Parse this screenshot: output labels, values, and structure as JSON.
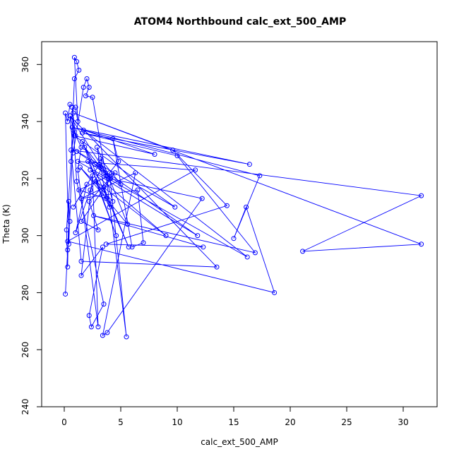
{
  "chart_data": {
    "type": "line",
    "title": "ATOM4 Northbound calc_ext_500_AMP",
    "xlabel": "calc_ext_500_AMP",
    "ylabel": "Theta (K)",
    "xlim": [
      -2,
      33
    ],
    "ylim": [
      240,
      368
    ],
    "xticks": [
      0,
      5,
      10,
      15,
      20,
      25,
      30
    ],
    "yticks": [
      240,
      260,
      280,
      300,
      320,
      340,
      360
    ],
    "grid": false,
    "legend": "none",
    "line_color": "#0000ff",
    "marker": "open-circle",
    "series": [
      {
        "points": [
          [
            0.1,
            279.5
          ],
          [
            0.3,
            295
          ],
          [
            0.5,
            305
          ],
          [
            0.4,
            312
          ],
          [
            0.3,
            289
          ],
          [
            0.2,
            302
          ],
          [
            0.6,
            326
          ],
          [
            0.9,
            355
          ],
          [
            1.3,
            358
          ],
          [
            1.1,
            361
          ],
          [
            0.9,
            362.5
          ],
          [
            1.2,
            340
          ],
          [
            1.0,
            345
          ],
          [
            0.5,
            346
          ],
          [
            0.3,
            340
          ],
          [
            0.1,
            343
          ],
          [
            0.4,
            297
          ],
          [
            0.8,
            337
          ],
          [
            1.5,
            331
          ],
          [
            1.2,
            323
          ],
          [
            3.0,
            268
          ],
          [
            2.5,
            321
          ],
          [
            1.5,
            286
          ],
          [
            3.4,
            296
          ],
          [
            2.2,
            272
          ],
          [
            2.4,
            268
          ],
          [
            3.5,
            276
          ],
          [
            1.1,
            319
          ],
          [
            0.7,
            345
          ],
          [
            1.0,
            335
          ],
          [
            0.5,
            342
          ],
          [
            0.8,
            329
          ],
          [
            1.7,
            352
          ],
          [
            2.0,
            355
          ],
          [
            2.2,
            352
          ],
          [
            1.9,
            349
          ],
          [
            2.5,
            348.5
          ],
          [
            3.7,
            321
          ],
          [
            5.5,
            264.5
          ],
          [
            4.0,
            322
          ],
          [
            4.8,
            326
          ],
          [
            4.3,
            334
          ],
          [
            6.0,
            296
          ],
          [
            7.0,
            297.5
          ],
          [
            6.5,
            316
          ],
          [
            1.5,
            313
          ],
          [
            6.3,
            322
          ],
          [
            3.4,
            265
          ],
          [
            3.8,
            266
          ],
          [
            12.2,
            313
          ],
          [
            4.0,
            320
          ],
          [
            0.5,
            342
          ],
          [
            13.5,
            289
          ],
          [
            1.5,
            291
          ],
          [
            0.6,
            330
          ],
          [
            31.6,
            314
          ],
          [
            21.1,
            294.5
          ],
          [
            31.6,
            297
          ],
          [
            0.8,
            343
          ],
          [
            9.6,
            330
          ],
          [
            14.4,
            310.5
          ],
          [
            3.7,
            297
          ],
          [
            12.3,
            296
          ],
          [
            2.6,
            307
          ],
          [
            16.9,
            294
          ],
          [
            10.0,
            328
          ],
          [
            1.6,
            336
          ],
          [
            16.4,
            325
          ],
          [
            0.7,
            338
          ],
          [
            17.3,
            321
          ],
          [
            15.0,
            299
          ],
          [
            16.1,
            310
          ],
          [
            18.6,
            280
          ],
          [
            0.3,
            298
          ],
          [
            11.6,
            323
          ],
          [
            1.2,
            326
          ],
          [
            16.2,
            292.5
          ],
          [
            1.7,
            337
          ],
          [
            8.0,
            328.5
          ],
          [
            0.9,
            335
          ],
          [
            9.8,
            310
          ],
          [
            1.1,
            329.5
          ],
          [
            11.8,
            300
          ],
          [
            2.3,
            323
          ],
          [
            9.0,
            300
          ],
          [
            2.8,
            319
          ],
          [
            4.6,
            300
          ],
          [
            1.6,
            333
          ],
          [
            5.7,
            296
          ],
          [
            3.5,
            317
          ],
          [
            4.0,
            310
          ],
          [
            2.1,
            326
          ],
          [
            5.0,
            318
          ],
          [
            3.2,
            327
          ],
          [
            4.3,
            312
          ],
          [
            1.4,
            324
          ],
          [
            5.6,
            304
          ],
          [
            2.9,
            331
          ],
          [
            3.7,
            313
          ],
          [
            1.3,
            316
          ],
          [
            4.5,
            322
          ],
          [
            2.2,
            312
          ],
          [
            3.0,
            302
          ],
          [
            1.5,
            305
          ],
          [
            4.1,
            320
          ],
          [
            2.7,
            325
          ],
          [
            1.8,
            331
          ],
          [
            3.3,
            323.5
          ],
          [
            2.3,
            316
          ],
          [
            1.0,
            301
          ],
          [
            2.0,
            318
          ],
          [
            0.8,
            310
          ],
          [
            3.1,
            325
          ],
          [
            3.6,
            322
          ]
        ]
      }
    ]
  }
}
